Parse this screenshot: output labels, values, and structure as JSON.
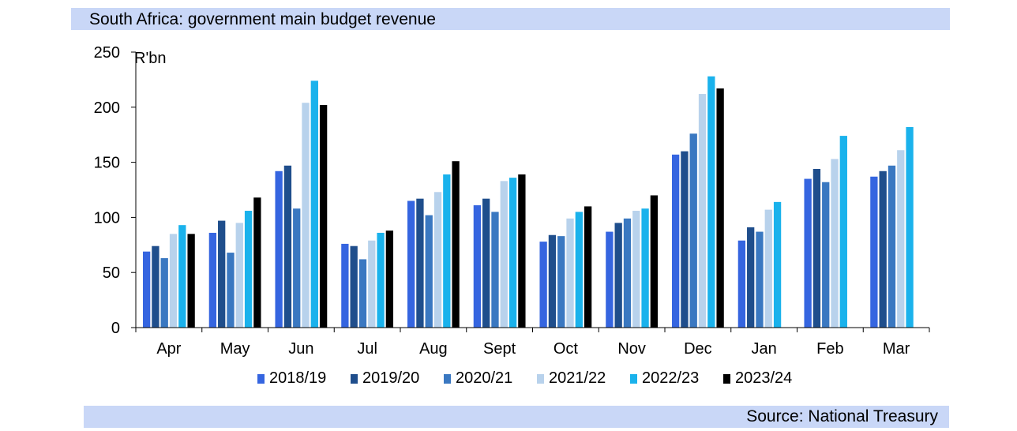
{
  "header": {
    "title": "South Africa: government main budget revenue"
  },
  "footer": {
    "source": "Source: National Treasury"
  },
  "chart_data": {
    "type": "bar",
    "title": "South Africa: government main budget revenue",
    "unit_label": "R'bn",
    "xlabel": "",
    "ylabel": "R'bn",
    "ylim": [
      0,
      250
    ],
    "yticks": [
      0,
      50,
      100,
      150,
      200,
      250
    ],
    "legend_position": "bottom",
    "categories": [
      "Apr",
      "May",
      "Jun",
      "Jul",
      "Aug",
      "Sept",
      "Oct",
      "Nov",
      "Dec",
      "Jan",
      "Feb",
      "Mar"
    ],
    "series": [
      {
        "name": "2018/19",
        "color": "#3565e0",
        "values": [
          69,
          86,
          142,
          76,
          115,
          111,
          78,
          87,
          157,
          79,
          135,
          137
        ]
      },
      {
        "name": "2019/20",
        "color": "#1f4e8c",
        "values": [
          74,
          97,
          147,
          74,
          117,
          117,
          84,
          95,
          160,
          91,
          144,
          142
        ]
      },
      {
        "name": "2020/21",
        "color": "#3a78c1",
        "values": [
          63,
          68,
          108,
          62,
          102,
          105,
          83,
          99,
          176,
          87,
          132,
          147
        ]
      },
      {
        "name": "2021/22",
        "color": "#b8d2ec",
        "values": [
          85,
          95,
          204,
          79,
          123,
          133,
          99,
          106,
          212,
          107,
          153,
          161
        ]
      },
      {
        "name": "2022/23",
        "color": "#1ab2ec",
        "values": [
          93,
          106,
          224,
          86,
          139,
          136,
          105,
          108,
          228,
          114,
          174,
          182
        ]
      },
      {
        "name": "2023/24",
        "color": "#000000",
        "values": [
          85,
          118,
          202,
          88,
          151,
          139,
          110,
          120,
          217,
          null,
          null,
          null
        ]
      }
    ]
  }
}
